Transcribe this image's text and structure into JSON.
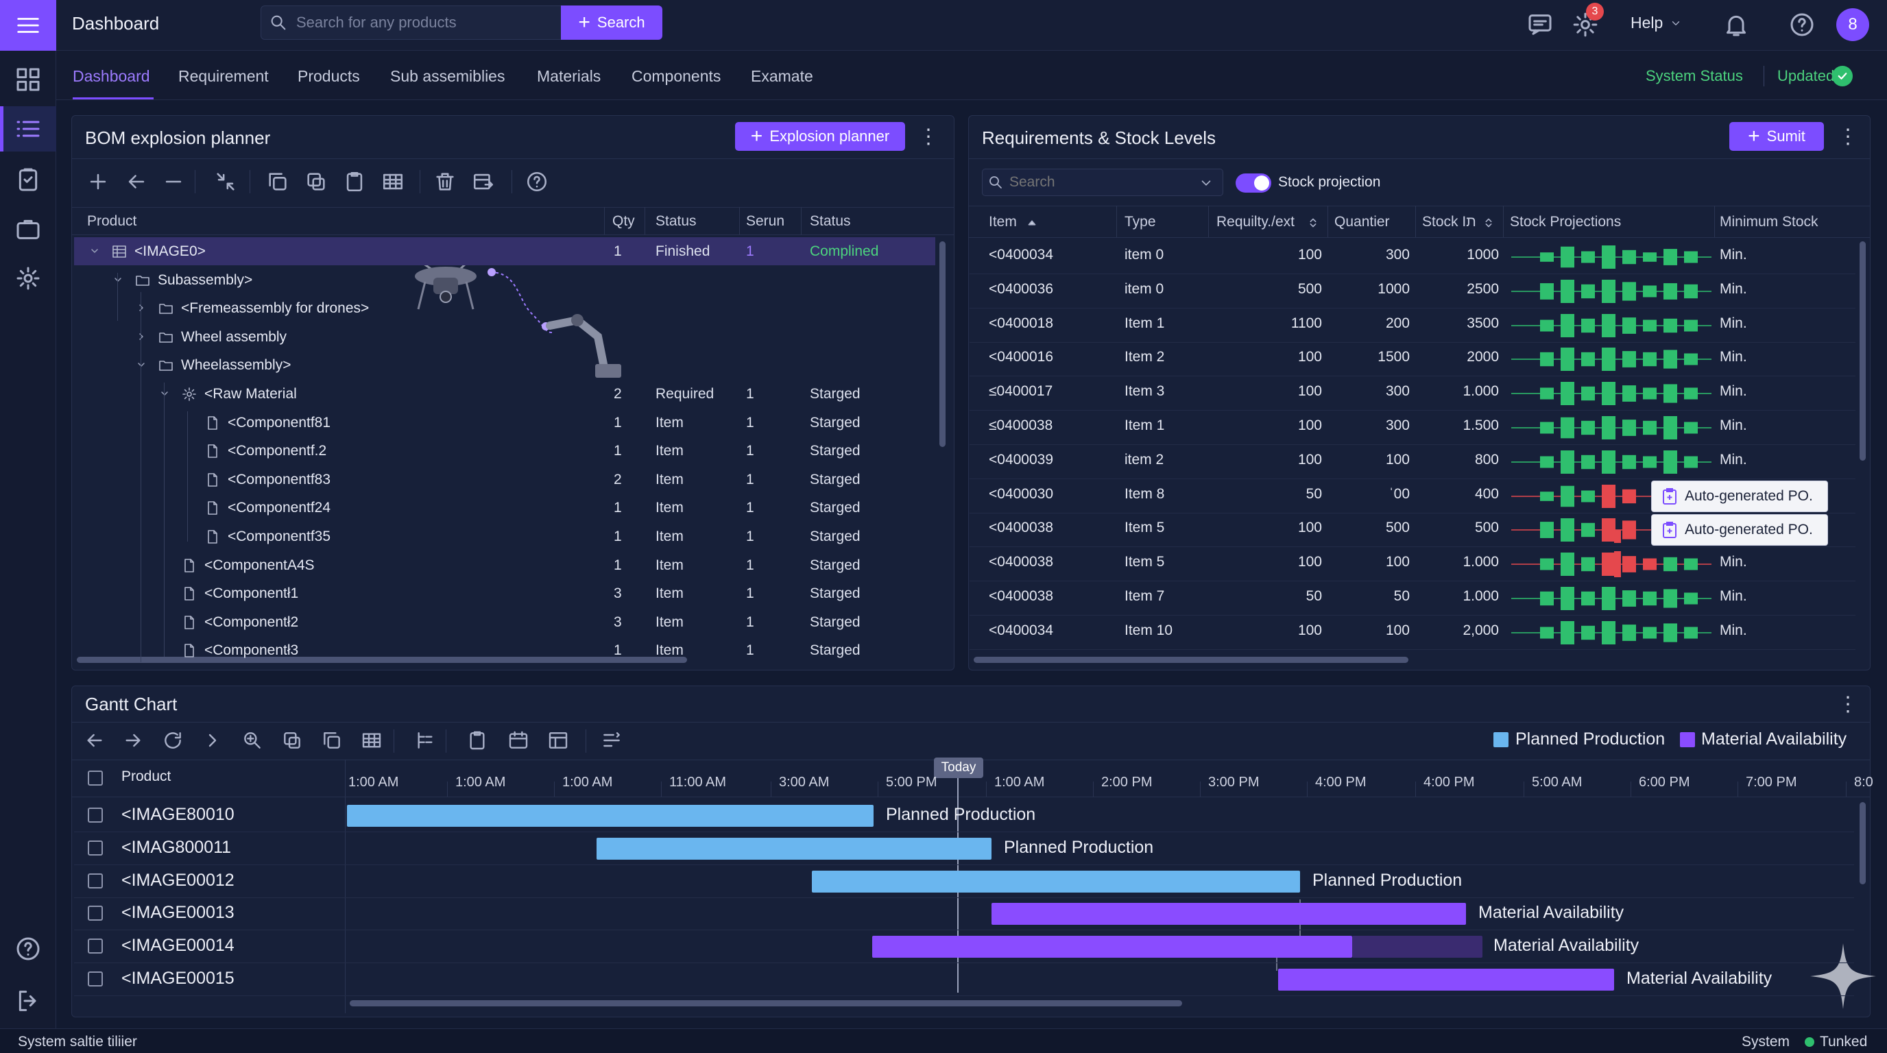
{
  "header": {
    "title": "Dashboard",
    "search_placeholder": "Search for any products",
    "search_button": "Search",
    "notification_count": "3",
    "help_label": "Help",
    "avatar_initial": "8"
  },
  "nav": {
    "tabs": [
      "Dashboard",
      "Requirement",
      "Products",
      "Sub assemiblies",
      "Materials",
      "Components",
      "Examate"
    ],
    "system_status": "System Status",
    "updated": "Updated"
  },
  "bom": {
    "title": "BOM explosion planner",
    "button": "Explosion planner",
    "columns": [
      "Product",
      "Qty",
      "Status",
      "Serun",
      "Status"
    ],
    "rows": [
      {
        "name": "<IMAGE0>",
        "qty": "1",
        "status": "Finished",
        "serun": "1",
        "status2": "Complined"
      },
      {
        "name": "Subassembly>",
        "qty": "",
        "status": "",
        "serun": "",
        "status2": ""
      },
      {
        "name": "<Fremeassembly for drones>",
        "qty": "",
        "status": "",
        "serun": "",
        "status2": ""
      },
      {
        "name": "Wheel assembly",
        "qty": "",
        "status": "",
        "serun": "",
        "status2": ""
      },
      {
        "name": "Wheelassembly>",
        "qty": "",
        "status": "",
        "serun": "",
        "status2": ""
      },
      {
        "name": "<Raw Material",
        "qty": "2",
        "status": "Required",
        "serun": "1",
        "status2": "Starged"
      },
      {
        "name": "<Componentf81",
        "qty": "1",
        "status": "Item",
        "serun": "1",
        "status2": "Starged"
      },
      {
        "name": "<Componentf.2",
        "qty": "1",
        "status": "Item",
        "serun": "1",
        "status2": "Starged"
      },
      {
        "name": "<Componentf83",
        "qty": "2",
        "status": "Item",
        "serun": "1",
        "status2": "Starged"
      },
      {
        "name": "<Componentf24",
        "qty": "1",
        "status": "Item",
        "serun": "1",
        "status2": "Starged"
      },
      {
        "name": "<Componentf35",
        "qty": "1",
        "status": "Item",
        "serun": "1",
        "status2": "Starged"
      },
      {
        "name": "<ComponentA4S",
        "qty": "1",
        "status": "Item",
        "serun": "1",
        "status2": "Starged"
      },
      {
        "name": "<Componentł1",
        "qty": "3",
        "status": "Item",
        "serun": "1",
        "status2": "Starged"
      },
      {
        "name": "<Componentł2",
        "qty": "3",
        "status": "Item",
        "serun": "1",
        "status2": "Starged"
      },
      {
        "name": "<Componentł3",
        "qty": "1",
        "status": "Item",
        "serun": "1",
        "status2": "Starged"
      }
    ]
  },
  "req": {
    "title": "Requirements & Stock Levels",
    "button": "Sumit",
    "search_placeholder": "Search",
    "toggle_label": "Stock projection",
    "columns": [
      "Item",
      "Type",
      "Requilty./ext",
      "Quantier",
      "Stock Iת",
      "Stock Projections",
      "Minimum Stock"
    ],
    "rows": [
      {
        "item": "<0400034",
        "type": "item 0",
        "req": "100",
        "qty": "300",
        "stock": "1000",
        "min": "Min."
      },
      {
        "item": "<0400036",
        "type": "item 0",
        "req": "500",
        "qty": "1000",
        "stock": "2500",
        "min": "Min."
      },
      {
        "item": "<0400018",
        "type": "Item 1",
        "req": "1100",
        "qty": "200",
        "stock": "3500",
        "min": "Min."
      },
      {
        "item": "<0400016",
        "type": "Item 2",
        "req": "100",
        "qty": "1500",
        "stock": "2000",
        "min": "Min."
      },
      {
        "item": "≤0400017",
        "type": "Item 3",
        "req": "100",
        "qty": "300",
        "stock": "1.000",
        "min": "Min."
      },
      {
        "item": "≤0400038",
        "type": "Item 1",
        "req": "100",
        "qty": "300",
        "stock": "1.500",
        "min": "Min."
      },
      {
        "item": "<0400039",
        "type": "item 2",
        "req": "100",
        "qty": "100",
        "stock": "800",
        "min": "Min."
      },
      {
        "item": "<0400030",
        "type": "Item 8",
        "req": "50",
        "qty": "ˈ00",
        "stock": "400",
        "min": "",
        "popup": "Auto-generated PO."
      },
      {
        "item": "<0400038",
        "type": "Item 5",
        "req": "100",
        "qty": "500",
        "stock": "500",
        "min": "",
        "popup": "Auto-generated PO."
      },
      {
        "item": "<0400038",
        "type": "Item 5",
        "req": "100",
        "qty": "100",
        "stock": "1.000",
        "min": "Min."
      },
      {
        "item": "<0400038",
        "type": "Item 7",
        "req": "50",
        "qty": "50",
        "stock": "1.000",
        "min": "Min."
      },
      {
        "item": "<0400034",
        "type": "Item 10",
        "req": "100",
        "qty": "100",
        "stock": "2,000",
        "min": "Min."
      }
    ]
  },
  "gantt": {
    "title": "Gantt Chart",
    "legend": [
      "Planned Production",
      "Material Availability"
    ],
    "column_header": "Product",
    "today_label": "Today",
    "times": [
      "1:00 AM",
      "1:00 AM",
      "1:00 AM",
      "11:00 AM",
      "3:00 AM",
      "5:00 PM",
      "1:00 AM",
      "2:00 PM",
      "3:00 PM",
      "4:00 PM",
      "4:00 PM",
      "5:00 AM",
      "6:00 PM",
      "7:00 PM",
      "8:0"
    ],
    "rows": [
      {
        "name": "<IMAGE80010",
        "bar_label": "Planned Production"
      },
      {
        "name": "<IMAG800011",
        "bar_label": "Planned Production"
      },
      {
        "name": "<IMAGΕ00012",
        "bar_label": "Planned Production"
      },
      {
        "name": "<IMAGΕ00013",
        "bar_label": "Material Availability"
      },
      {
        "name": "<IMAGΕ00014",
        "bar_label": "Material Availability"
      },
      {
        "name": "<IMAGΕ00015",
        "bar_label": "Material Availability"
      }
    ]
  },
  "status_bar": {
    "left": "System saltie tiliier",
    "right_label": "System",
    "right_state": "Tunked"
  }
}
